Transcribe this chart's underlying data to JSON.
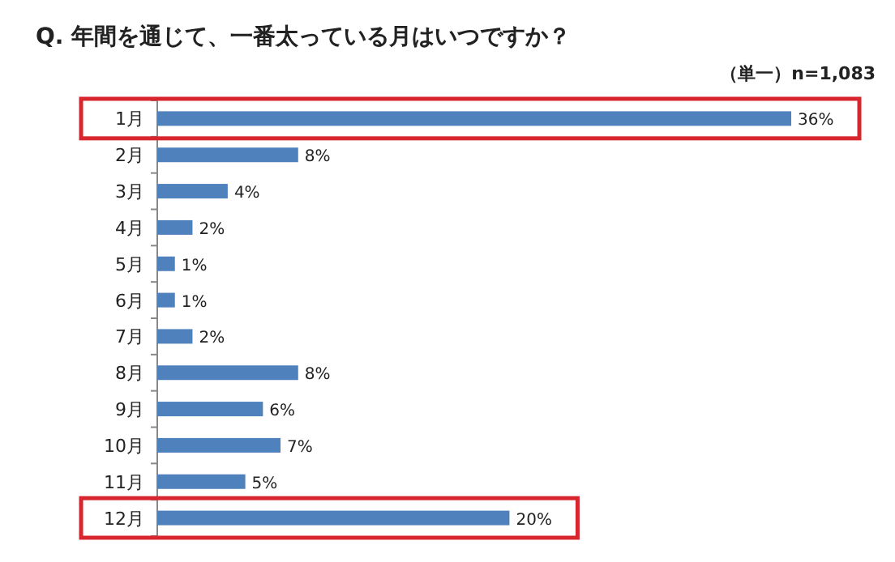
{
  "chart_data": {
    "type": "bar",
    "orientation": "horizontal",
    "title": "Q. 年間を通じて、一番太っている月はいつですか？",
    "subtitle": "（単一）n=1,083",
    "categories": [
      "1月",
      "2月",
      "3月",
      "4月",
      "5月",
      "6月",
      "7月",
      "8月",
      "9月",
      "10月",
      "11月",
      "12月"
    ],
    "values": [
      36,
      8,
      4,
      2,
      1,
      1,
      2,
      8,
      6,
      7,
      5,
      20
    ],
    "value_labels": [
      "36%",
      "8%",
      "4%",
      "2%",
      "1%",
      "1%",
      "2%",
      "8%",
      "6%",
      "7%",
      "5%",
      "20%"
    ],
    "color": "#4f81bd"
  }
}
